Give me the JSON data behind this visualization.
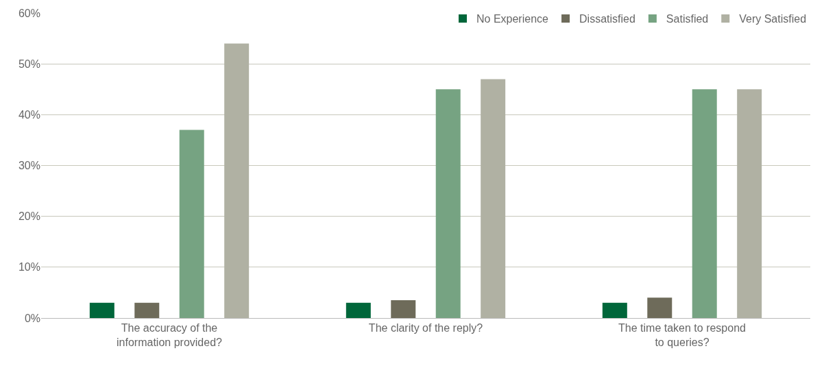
{
  "chart_data": {
    "type": "bar",
    "categories": [
      "The accuracy of the information provided?",
      "The clarity of the reply?",
      "The time taken to respond to queries?"
    ],
    "series": [
      {
        "name": "No Experience",
        "color": "#00663a",
        "values": [
          3,
          3,
          3
        ]
      },
      {
        "name": "Dissatisfied",
        "color": "#6e6b5a",
        "values": [
          3,
          3.5,
          4
        ]
      },
      {
        "name": "Satisfied",
        "color": "#76a382",
        "values": [
          37,
          45,
          45
        ]
      },
      {
        "name": "Very Satisfied",
        "color": "#b0b1a3",
        "values": [
          54,
          47,
          45
        ]
      }
    ],
    "ylim": [
      0,
      60
    ],
    "yticks": [
      {
        "value": 0,
        "label": "0%"
      },
      {
        "value": 10,
        "label": "10%"
      },
      {
        "value": 20,
        "label": "20%"
      },
      {
        "value": 30,
        "label": "30%"
      },
      {
        "value": 40,
        "label": "40%"
      },
      {
        "value": 50,
        "label": "50%"
      },
      {
        "value": 60,
        "label": "60%"
      }
    ],
    "grid": "y",
    "legend": "top right"
  }
}
